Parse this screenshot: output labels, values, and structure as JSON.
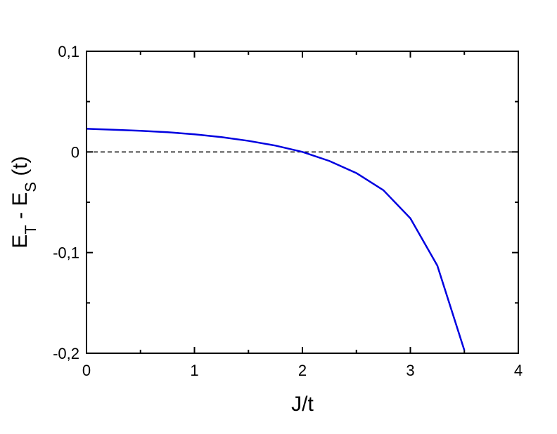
{
  "chart_data": {
    "type": "line",
    "xlabel": "J/t",
    "ylabel": [
      {
        "text": "E"
      },
      {
        "text": "T",
        "sub": true
      },
      {
        "text": " - E"
      },
      {
        "text": "S",
        "sub": true
      },
      {
        "text": " (t)"
      }
    ],
    "x": [
      0,
      0.25,
      0.5,
      0.75,
      1,
      1.25,
      1.5,
      1.75,
      2,
      2.25,
      2.5,
      2.75,
      3,
      3.25,
      3.5
    ],
    "series": [
      {
        "color": "#0000e0",
        "values": [
          0.023,
          0.022,
          0.021,
          0.0196,
          0.0175,
          0.0147,
          0.011,
          0.0063,
          0,
          -0.009,
          -0.021,
          -0.038,
          -0.066,
          -0.113,
          -0.197
        ]
      }
    ],
    "xlim": [
      0,
      4
    ],
    "xticks": [
      0,
      1,
      2,
      3,
      4
    ],
    "xminorticks": [
      0.5,
      1.5,
      2.5,
      3.5
    ],
    "ylim": [
      -0.2,
      0.1
    ],
    "yticks": [
      {
        "value": -0.2,
        "label": "-0,2"
      },
      {
        "value": -0.1,
        "label": "-0,1"
      },
      {
        "value": 0,
        "label": "0"
      },
      {
        "value": 0.1,
        "label": "0,1"
      }
    ],
    "yminorticks": [
      -0.15,
      -0.05,
      0.05
    ],
    "hline": 0
  }
}
